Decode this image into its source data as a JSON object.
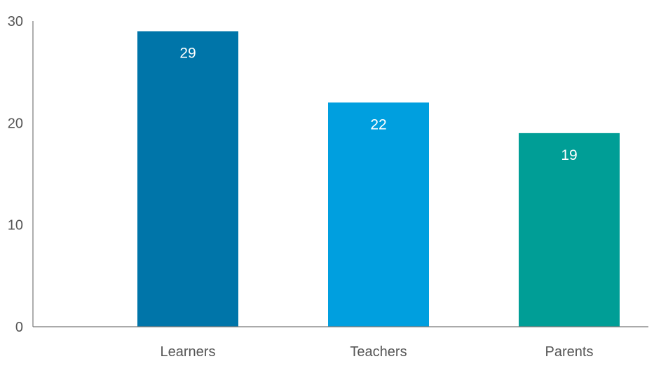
{
  "chart_data": {
    "type": "bar",
    "categories": [
      "Learners",
      "Teachers",
      "Parents"
    ],
    "values": [
      29,
      22,
      19
    ],
    "data_labels": [
      "29",
      "22",
      "19"
    ],
    "colors": [
      "#0075A9",
      "#009FDF",
      "#009E96"
    ],
    "yticks": [
      0,
      10,
      20,
      30
    ],
    "ytick_labels": [
      "0",
      "10",
      "20",
      "30"
    ],
    "ylim": [
      0,
      30
    ],
    "grid": false,
    "legend": "none"
  }
}
